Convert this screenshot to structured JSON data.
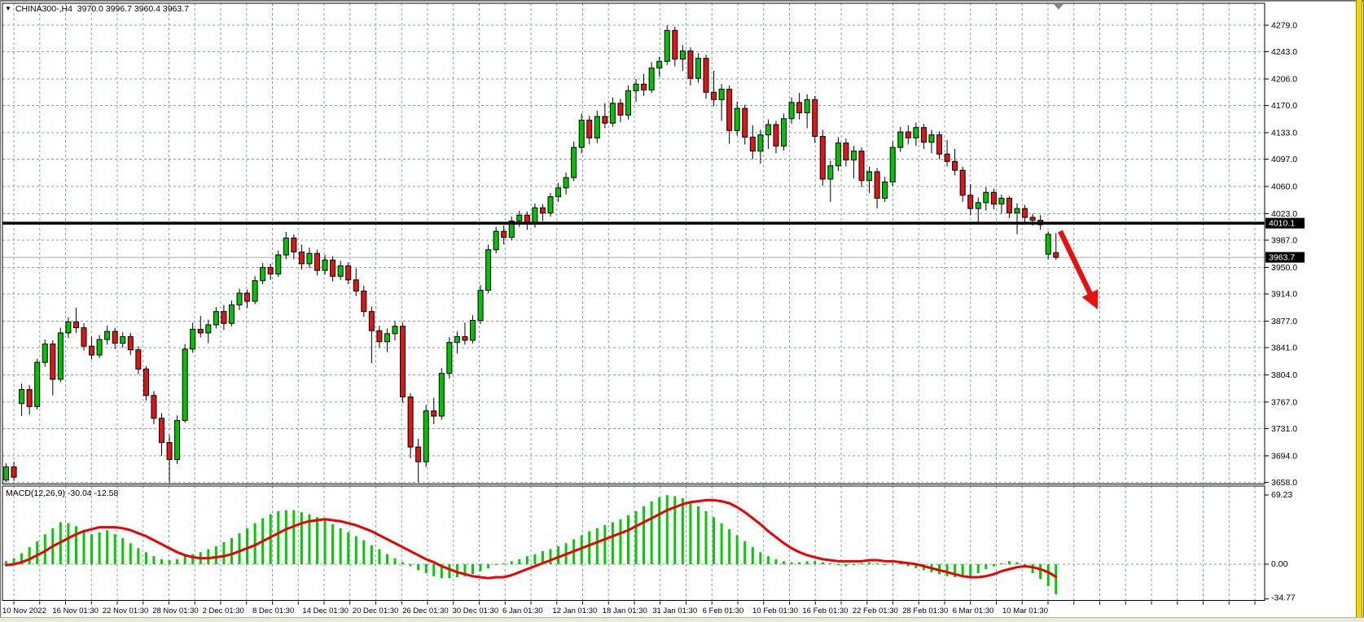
{
  "header": {
    "title_text": "CHINA300-,H4  3970.0 3996.7 3960.4 3963.7",
    "symbol": "CHINA300-",
    "period": "H4",
    "open": "3970.0",
    "high": "3996.7",
    "low": "3960.4",
    "close": "3963.7",
    "dropdown_icon": "symbol-dropdown"
  },
  "macd": {
    "label": "MACD(12,26,9) -30.04 -12.58",
    "macd_value": "-30.04",
    "signal_value": "-12.58"
  },
  "colors": {
    "bull": "#00c400",
    "bear": "#e01616",
    "wick": "#000000",
    "grid": "#8e9fae",
    "signal_line": "#ee0000",
    "macd_hist": "#00cc00",
    "hline": "#000000",
    "bid_line": "#ababab",
    "arrow": "#e80f0f",
    "axis_text": "#000000",
    "tag_bg": "#000000",
    "tag_text": "#ffffff",
    "background": "#ffffff",
    "right_stripe": "#f2d403"
  },
  "price_axis": {
    "labels": [
      "4279.0",
      "4243.0",
      "4206.0",
      "4170.0",
      "4133.0",
      "4097.0",
      "4060.0",
      "4023.0",
      "3987.0",
      "3950.0",
      "3914.0",
      "3877.0",
      "3841.0",
      "3804.0",
      "3767.0",
      "3731.0",
      "3694.0",
      "3658.0"
    ],
    "tags": [
      {
        "text": "4010.1",
        "price": 4010.1
      },
      {
        "text": "3963.7",
        "price": 3963.7
      }
    ]
  },
  "macd_axis": {
    "labels": [
      "69.23",
      "0.00",
      "-34.77"
    ]
  },
  "time_axis": {
    "labels": [
      "10 Nov 2022",
      "16 Nov 01:30",
      "22 Nov 01:30",
      "28 Nov 01:30",
      "2 Dec 01:30",
      "8 Dec 01:30",
      "14 Dec 01:30",
      "20 Dec 01:30",
      "26 Dec 01:30",
      "30 Dec 01:30",
      "6 Jan 01:30",
      "12 Jan 01:30",
      "18 Jan 01:30",
      "31 Jan 01:30",
      "6 Feb 01:30",
      "10 Feb 01:30",
      "16 Feb 01:30",
      "22 Feb 01:30",
      "28 Feb 01:30",
      "6 Mar 01:30",
      "10 Mar 01:30"
    ]
  },
  "chart_data": {
    "type": "candlestick",
    "title": "CHINA300- H4 with MACD(12,26,9)",
    "y_range_main": [
      3658,
      4309
    ],
    "y_range_macd": [
      -34.77,
      78
    ],
    "legend_position": "none",
    "grid": true,
    "annotations": {
      "horizontal_line_price": 4010.1,
      "bid_price": 3963.7,
      "arrow": {
        "from": [
          1302,
          284
        ],
        "to": [
          1348,
          380
        ]
      }
    },
    "candles": [
      [
        3661,
        3684,
        3658,
        3679
      ],
      [
        3679,
        3686,
        3660,
        3665
      ],
      [
        3765,
        3792,
        3748,
        3784
      ],
      [
        3784,
        3790,
        3750,
        3761
      ],
      [
        3761,
        3826,
        3757,
        3821
      ],
      [
        3821,
        3852,
        3815,
        3846
      ],
      [
        3846,
        3851,
        3776,
        3798
      ],
      [
        3798,
        3868,
        3794,
        3861
      ],
      [
        3861,
        3882,
        3854,
        3876
      ],
      [
        3876,
        3895,
        3861,
        3868
      ],
      [
        3868,
        3874,
        3837,
        3843
      ],
      [
        3843,
        3856,
        3825,
        3831
      ],
      [
        3831,
        3858,
        3827,
        3852
      ],
      [
        3852,
        3871,
        3845,
        3863
      ],
      [
        3863,
        3868,
        3839,
        3847
      ],
      [
        3847,
        3862,
        3841,
        3856
      ],
      [
        3856,
        3861,
        3831,
        3838
      ],
      [
        3838,
        3843,
        3805,
        3812
      ],
      [
        3812,
        3816,
        3769,
        3776
      ],
      [
        3776,
        3782,
        3737,
        3745
      ],
      [
        3745,
        3752,
        3694,
        3712
      ],
      [
        3712,
        3722,
        3658,
        3689
      ],
      [
        3689,
        3749,
        3683,
        3742
      ],
      [
        3742,
        3846,
        3739,
        3839
      ],
      [
        3839,
        3875,
        3834,
        3866
      ],
      [
        3866,
        3884,
        3855,
        3861
      ],
      [
        3861,
        3879,
        3847,
        3872
      ],
      [
        3872,
        3896,
        3867,
        3890
      ],
      [
        3890,
        3899,
        3865,
        3874
      ],
      [
        3874,
        3905,
        3870,
        3899
      ],
      [
        3899,
        3921,
        3892,
        3915
      ],
      [
        3915,
        3920,
        3895,
        3904
      ],
      [
        3904,
        3938,
        3900,
        3932
      ],
      [
        3932,
        3956,
        3927,
        3950
      ],
      [
        3950,
        3955,
        3933,
        3941
      ],
      [
        3941,
        3973,
        3937,
        3967
      ],
      [
        3967,
        3998,
        3961,
        3990
      ],
      [
        3990,
        3995,
        3961,
        3971
      ],
      [
        3971,
        3981,
        3947,
        3955
      ],
      [
        3955,
        3977,
        3949,
        3969
      ],
      [
        3969,
        3974,
        3939,
        3946
      ],
      [
        3946,
        3967,
        3940,
        3960
      ],
      [
        3960,
        3965,
        3931,
        3938
      ],
      [
        3938,
        3959,
        3933,
        3952
      ],
      [
        3952,
        3957,
        3927,
        3933
      ],
      [
        3933,
        3949,
        3911,
        3918
      ],
      [
        3918,
        3925,
        3883,
        3890
      ],
      [
        3890,
        3897,
        3820,
        3864
      ],
      [
        3864,
        3871,
        3841,
        3849
      ],
      [
        3849,
        3867,
        3835,
        3860
      ],
      [
        3860,
        3877,
        3851,
        3870
      ],
      [
        3870,
        3875,
        3766,
        3774
      ],
      [
        3774,
        3779,
        3691,
        3706
      ],
      [
        3706,
        3717,
        3658,
        3686
      ],
      [
        3686,
        3763,
        3679,
        3755
      ],
      [
        3755,
        3773,
        3737,
        3748
      ],
      [
        3748,
        3813,
        3743,
        3806
      ],
      [
        3806,
        3855,
        3799,
        3848
      ],
      [
        3848,
        3863,
        3833,
        3856
      ],
      [
        3856,
        3875,
        3845,
        3851
      ],
      [
        3851,
        3885,
        3847,
        3878
      ],
      [
        3878,
        3926,
        3873,
        3919
      ],
      [
        3919,
        3981,
        3915,
        3974
      ],
      [
        3974,
        4005,
        3969,
        3999
      ],
      [
        3999,
        4007,
        3981,
        3991
      ],
      [
        3991,
        4019,
        3987,
        4013
      ],
      [
        4013,
        4027,
        4005,
        4021
      ],
      [
        4021,
        4026,
        4001,
        4009
      ],
      [
        4009,
        4037,
        4004,
        4031
      ],
      [
        4031,
        4036,
        4013,
        4024
      ],
      [
        4024,
        4051,
        4019,
        4046
      ],
      [
        4046,
        4065,
        4039,
        4058
      ],
      [
        4058,
        4079,
        4049,
        4072
      ],
      [
        4072,
        4121,
        4067,
        4113
      ],
      [
        4113,
        4159,
        4105,
        4150
      ],
      [
        4150,
        4156,
        4117,
        4126
      ],
      [
        4126,
        4163,
        4119,
        4155
      ],
      [
        4155,
        4173,
        4139,
        4146
      ],
      [
        4146,
        4181,
        4141,
        4173
      ],
      [
        4173,
        4179,
        4147,
        4157
      ],
      [
        4157,
        4197,
        4151,
        4190
      ],
      [
        4190,
        4206,
        4175,
        4199
      ],
      [
        4199,
        4213,
        4183,
        4191
      ],
      [
        4191,
        4229,
        4187,
        4221
      ],
      [
        4221,
        4236,
        4209,
        4230
      ],
      [
        4230,
        4279,
        4225,
        4272
      ],
      [
        4272,
        4277,
        4223,
        4233
      ],
      [
        4233,
        4252,
        4217,
        4244
      ],
      [
        4244,
        4249,
        4197,
        4207
      ],
      [
        4207,
        4241,
        4201,
        4234
      ],
      [
        4234,
        4239,
        4179,
        4188
      ],
      [
        4188,
        4217,
        4169,
        4178
      ],
      [
        4178,
        4199,
        4149,
        4192
      ],
      [
        4192,
        4197,
        4118,
        4136
      ],
      [
        4136,
        4175,
        4129,
        4166
      ],
      [
        4166,
        4171,
        4117,
        4127
      ],
      [
        4127,
        4143,
        4097,
        4108
      ],
      [
        4108,
        4137,
        4091,
        4130
      ],
      [
        4130,
        4151,
        4111,
        4144
      ],
      [
        4144,
        4149,
        4105,
        4115
      ],
      [
        4115,
        4159,
        4109,
        4152
      ],
      [
        4152,
        4181,
        4145,
        4174
      ],
      [
        4174,
        4187,
        4151,
        4160
      ],
      [
        4160,
        4185,
        4139,
        4178
      ],
      [
        4178,
        4183,
        4119,
        4128
      ],
      [
        4128,
        4137,
        4061,
        4070
      ],
      [
        4070,
        4095,
        4039,
        4088
      ],
      [
        4088,
        4127,
        4081,
        4119
      ],
      [
        4119,
        4125,
        4087,
        4096
      ],
      [
        4096,
        4115,
        4071,
        4108
      ],
      [
        4108,
        4113,
        4059,
        4068
      ],
      [
        4068,
        4087,
        4051,
        4080
      ],
      [
        4080,
        4085,
        4030,
        4044
      ],
      [
        4044,
        4073,
        4039,
        4066
      ],
      [
        4066,
        4121,
        4061,
        4113
      ],
      [
        4113,
        4141,
        4107,
        4134
      ],
      [
        4134,
        4143,
        4117,
        4126
      ],
      [
        4126,
        4147,
        4115,
        4140
      ],
      [
        4140,
        4145,
        4111,
        4120
      ],
      [
        4120,
        4137,
        4105,
        4130
      ],
      [
        4130,
        4135,
        4097,
        4104
      ],
      [
        4104,
        4123,
        4087,
        4094
      ],
      [
        4094,
        4111,
        4075,
        4082
      ],
      [
        4082,
        4087,
        4039,
        4048
      ],
      [
        4048,
        4063,
        4021,
        4030
      ],
      [
        4030,
        4045,
        4011,
        4038
      ],
      [
        4038,
        4059,
        4027,
        4052
      ],
      [
        4052,
        4057,
        4029,
        4036
      ],
      [
        4036,
        4049,
        4023,
        4044
      ],
      [
        4044,
        4047,
        4017,
        4024
      ],
      [
        4024,
        4037,
        3995,
        4030
      ],
      [
        4030,
        4035,
        4011,
        4018
      ],
      [
        4018,
        4023,
        4007,
        4014
      ],
      [
        4014,
        4021,
        4001,
        4008
      ],
      [
        3968,
        3999,
        3961,
        3995
      ],
      [
        3970,
        3996.7,
        3960.4,
        3963.7
      ]
    ],
    "macd_histogram": [
      3,
      6,
      11,
      17,
      23,
      30,
      36,
      42,
      41,
      38,
      34,
      30,
      32,
      34,
      30,
      26,
      21,
      16,
      12,
      8,
      5,
      4,
      5,
      8,
      10,
      12,
      15,
      18,
      22,
      26,
      31,
      36,
      41,
      46,
      50,
      53,
      54,
      54,
      52,
      50,
      47,
      44,
      40,
      36,
      32,
      28,
      24,
      19,
      15,
      10,
      6,
      2,
      -2,
      -6,
      -9,
      -12,
      -14,
      -14,
      -13,
      -12,
      -10,
      -7,
      -4,
      -1,
      1,
      3,
      5,
      8,
      10,
      13,
      15,
      18,
      21,
      25,
      29,
      33,
      36,
      39,
      42,
      45,
      49,
      53,
      58,
      63,
      67,
      69,
      68,
      66,
      63,
      58,
      53,
      47,
      41,
      35,
      29,
      23,
      17,
      12,
      8,
      5,
      3,
      2,
      2,
      3,
      3,
      2,
      1,
      -1,
      -2,
      -1,
      1,
      2,
      1,
      -1,
      1,
      2,
      -2,
      -4,
      -6,
      -8,
      -10,
      -12,
      -13,
      -13,
      -12,
      -9,
      -5,
      -2,
      1,
      3,
      2,
      -3,
      -9,
      -15,
      -22,
      -30.04
    ],
    "macd_signal": [
      -1,
      0,
      2,
      5,
      9,
      13,
      18,
      22,
      26,
      30,
      33,
      35,
      37,
      37,
      37,
      36,
      34,
      31,
      28,
      24,
      20,
      16,
      12,
      9,
      7,
      6,
      6,
      7,
      8,
      10,
      13,
      16,
      19,
      23,
      27,
      31,
      35,
      38,
      41,
      43,
      44,
      45,
      44,
      43,
      41,
      39,
      36,
      33,
      29,
      25,
      21,
      17,
      13,
      9,
      5,
      2,
      -2,
      -5,
      -8,
      -10,
      -12,
      -13,
      -14,
      -13,
      -13,
      -11,
      -8,
      -5,
      -2,
      1,
      4,
      7,
      10,
      13,
      16,
      19,
      22,
      25,
      28,
      31,
      34,
      38,
      42,
      46,
      50,
      54,
      57,
      60,
      62,
      63,
      64,
      64,
      63,
      61,
      57,
      52,
      46,
      40,
      33,
      27,
      21,
      16,
      12,
      9,
      7,
      5,
      4,
      3,
      3,
      3,
      3,
      4,
      4,
      3,
      3,
      2,
      1,
      0,
      -2,
      -4,
      -6,
      -8,
      -10,
      -12,
      -13,
      -13,
      -12,
      -10,
      -7,
      -5,
      -3,
      -2,
      -3,
      -5,
      -8,
      -12.58
    ]
  }
}
